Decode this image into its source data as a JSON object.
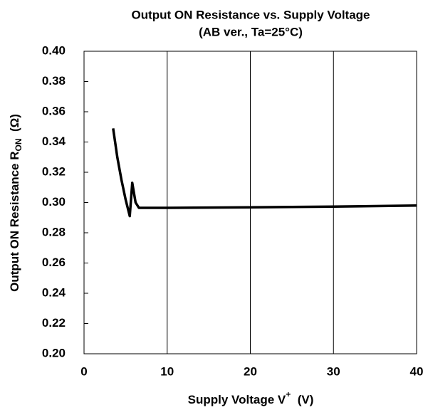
{
  "chart_data": {
    "type": "line",
    "title": [
      "Output ON Resistance vs. Supply Voltage",
      "(AB ver., Ta=25°C)"
    ],
    "xlabel": [
      "Supply Voltage  V",
      "+",
      "  (V)"
    ],
    "ylabel": [
      "Output ON Resistance  R",
      "ON",
      "  (Ω)"
    ],
    "x": [
      3.5,
      4.0,
      4.5,
      5.0,
      5.5,
      5.8,
      6.2,
      6.6,
      10,
      20,
      30,
      40
    ],
    "series": [
      {
        "color": "#000000",
        "values": [
          0.349,
          0.33,
          0.315,
          0.302,
          0.291,
          0.313,
          0.3,
          0.2965,
          0.2965,
          0.2968,
          0.2973,
          0.298
        ]
      }
    ],
    "xlim": [
      0,
      40
    ],
    "xticks": [
      0,
      10,
      20,
      30,
      40
    ],
    "ylim": [
      0.2,
      0.4
    ],
    "yticks": [
      {
        "value": 0.2,
        "label": "0.20"
      },
      {
        "value": 0.22,
        "label": "0.22"
      },
      {
        "value": 0.24,
        "label": "0.24"
      },
      {
        "value": 0.26,
        "label": "0.26"
      },
      {
        "value": 0.28,
        "label": "0.28"
      },
      {
        "value": 0.3,
        "label": "0.30"
      },
      {
        "value": 0.32,
        "label": "0.32"
      },
      {
        "value": 0.34,
        "label": "0.34"
      },
      {
        "value": 0.36,
        "label": "0.36"
      },
      {
        "value": 0.38,
        "label": "0.38"
      },
      {
        "value": 0.4,
        "label": "0.40"
      }
    ],
    "grid": "x"
  }
}
